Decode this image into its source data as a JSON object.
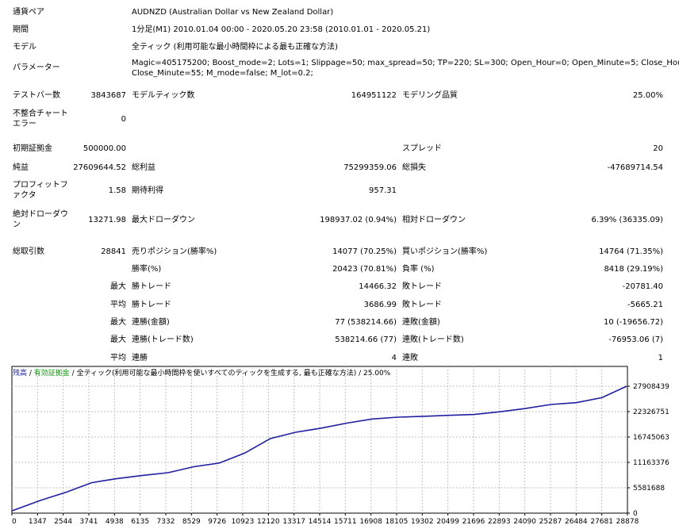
{
  "info": {
    "symbol_label": "通貨ペア",
    "symbol_value": "AUDNZD (Australian Dollar vs New Zealand Dollar)",
    "period_label": "期間",
    "period_value": "1分足(M1) 2010.01.04 00:00 - 2020.05.20 23:58 (2010.01.01 - 2020.05.21)",
    "model_label": "モデル",
    "model_value": "全ティック (利用可能な最小時間枠による最も正確な方法)",
    "params_label": "パラメーター",
    "params_line1": "Magic=405175200; Boost_mode=2; Lots=1; Slippage=50; max_spread=50; TP=220; SL=300; Open_Hour=0; Open_Minute=5; Close_Hour=23;",
    "params_line2": "Close_Minute=55; M_mode=false; M_lot=0.2;"
  },
  "stats": {
    "bars_label": "テストバー数",
    "bars_value": "3843687",
    "ticks_label": "モデルティック数",
    "ticks_value": "164951122",
    "quality_label": "モデリング品質",
    "quality_value": "25.00%",
    "mismatch_label": "不整合チャートエラー",
    "mismatch_value": "0",
    "deposit_label": "初期証拠金",
    "deposit_value": "500000.00",
    "spread_label": "スプレッド",
    "spread_value": "20",
    "net_label": "純益",
    "net_value": "27609644.52",
    "gross_profit_label": "総利益",
    "gross_profit_value": "75299359.06",
    "gross_loss_label": "総損失",
    "gross_loss_value": "-47689714.54",
    "pf_label": "プロフィットファクタ",
    "pf_value": "1.58",
    "expected_label": "期待利得",
    "expected_value": "957.31",
    "abs_dd_label": "絶対ドローダウン",
    "abs_dd_value": "13271.98",
    "max_dd_label": "最大ドローダウン",
    "max_dd_value": "198937.02 (0.94%)",
    "rel_dd_label": "相対ドローダウン",
    "rel_dd_value": "6.39% (36335.09)",
    "trades_label": "総取引数",
    "trades_value": "28841",
    "short_label": "売りポジション(勝率%)",
    "short_value": "14077 (70.25%)",
    "long_label": "買いポジション(勝率%)",
    "long_value": "14764 (71.35%)",
    "win_rate_label": "勝率(%)",
    "win_rate_value": "20423 (70.81%)",
    "loss_rate_label": "負率 (%)",
    "loss_rate_value": "8418 (29.19%)",
    "max_word": "最大",
    "avg_word": "平均",
    "largest_win_label": "勝トレード",
    "largest_win_value": "14466.32",
    "largest_loss_label": "敗トレード",
    "largest_loss_value": "-20781.40",
    "avg_win_label": "勝トレード",
    "avg_win_value": "3686.99",
    "avg_loss_label": "敗トレード",
    "avg_loss_value": "-5665.21",
    "max_cons_win_amt_label": "連勝(金額)",
    "max_cons_win_amt_value": "77 (538214.66)",
    "max_cons_loss_amt_label": "連敗(金額)",
    "max_cons_loss_amt_value": "10 (-19656.72)",
    "max_cons_win_cnt_label": "連勝(トレード数)",
    "max_cons_win_cnt_value": "538214.66 (77)",
    "max_cons_loss_cnt_label": "連敗(トレード数)",
    "max_cons_loss_cnt_value": "-76953.06 (7)",
    "avg_cons_win_label": "連勝",
    "avg_cons_win_value": "4",
    "avg_cons_loss_label": "連敗",
    "avg_cons_loss_value": "1"
  },
  "legend": {
    "balance": "残高",
    "sep1": " / ",
    "equity": "有効証拠金",
    "sep2": " / ",
    "model": "全ティック(利用可能な最小時間枠を使いすべてのティックを生成する, 最も正確な方法)",
    "quality": " / 25.00%"
  },
  "colors": {
    "balance": "#1f1fa0",
    "equity": "#00a000",
    "grid": "#c0c0c0"
  },
  "chart_data": {
    "type": "line",
    "series": [
      {
        "name": "残高",
        "x": [
          0,
          1347,
          2544,
          3741,
          4938,
          6135,
          7332,
          8529,
          9726,
          10923,
          12120,
          13317,
          14514,
          15711,
          16908,
          18105,
          19302,
          20499,
          21696,
          22893,
          24090,
          25287,
          26484,
          27681,
          28841
        ],
        "y": [
          500000,
          2800000,
          4600000,
          6700000,
          7600000,
          8300000,
          8900000,
          10200000,
          11000000,
          13200000,
          16400000,
          17800000,
          18700000,
          19800000,
          20700000,
          21100000,
          21300000,
          21500000,
          21700000,
          22300000,
          23000000,
          23900000,
          24300000,
          25400000,
          27900000
        ]
      }
    ],
    "x_ticks": [
      "0",
      "1347",
      "2544",
      "3741",
      "4938",
      "6135",
      "7332",
      "8529",
      "9726",
      "10923",
      "12120",
      "13317",
      "14514",
      "15711",
      "16908",
      "18105",
      "19302",
      "20499",
      "21696",
      "22893",
      "24090",
      "25287",
      "26484",
      "27681",
      "28878"
    ],
    "y_ticks": [
      "0",
      "5581688",
      "11163376",
      "16745063",
      "22326751",
      "27908439"
    ],
    "xlim": [
      0,
      28878
    ],
    "ylim": [
      0,
      27908439
    ],
    "grid": true
  }
}
